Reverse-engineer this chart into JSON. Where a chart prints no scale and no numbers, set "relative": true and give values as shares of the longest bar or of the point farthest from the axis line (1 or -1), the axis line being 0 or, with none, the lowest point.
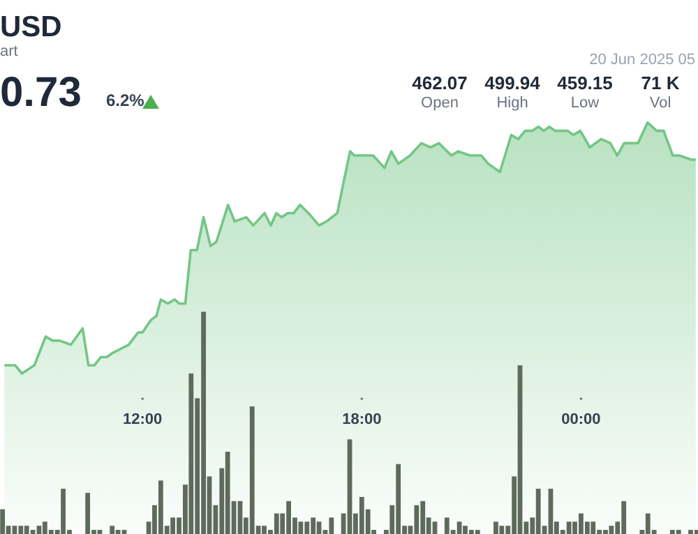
{
  "chart_data": {
    "type": "area",
    "title": "USD",
    "subtitle": "art",
    "relative": true,
    "annotations": [
      "0.73",
      "6.2%",
      "20 Jun 2025 05",
      "462.07",
      "Open",
      "499.94",
      "High",
      "459.15",
      "Low",
      "71 K",
      "Vol"
    ],
    "xlim": [
      8.1,
      27.2
    ],
    "xticks": [
      {
        "value": 12,
        "label": "12:00"
      },
      {
        "value": 18,
        "label": "18:00"
      },
      {
        "value": 24,
        "label": "00:00"
      }
    ],
    "series": [
      {
        "color": "#74c686",
        "x": [
          8.22,
          8.37,
          8.52,
          8.7,
          9.04,
          9.35,
          9.54,
          9.73,
          10.04,
          10.36,
          10.52,
          10.68,
          10.86,
          11.02,
          11.18,
          11.62,
          11.88,
          12,
          12.23,
          12.38,
          12.5,
          12.69,
          12.88,
          13.01,
          13.17,
          13.32,
          13.49,
          13.67,
          13.86,
          14.02,
          14.34,
          14.52,
          14.84,
          15.03,
          15.34,
          15.51,
          15.66,
          15.81,
          15.97,
          16.14,
          16.31,
          16.54,
          16.83,
          17.04,
          17.33,
          17.49,
          17.68,
          17.8,
          17.93,
          18.31,
          18.62,
          18.81,
          19,
          19.32,
          19.63,
          19.88,
          20.11,
          20.45,
          20.64,
          20.96,
          21.27,
          21.46,
          21.78,
          22.09,
          22.28,
          22.47,
          22.66,
          22.83,
          22.98,
          23.13,
          23.29,
          23.48,
          23.63,
          23.79,
          23.98,
          24.24,
          24.55,
          24.8,
          24.99,
          25.18,
          25.44,
          25.56,
          25.82,
          26.07,
          26.26,
          26.51,
          26.7,
          27.01,
          27.14
        ],
        "values": [
          0.41,
          0.41,
          0.41,
          0.39,
          0.41,
          0.48,
          0.47,
          0.47,
          0.46,
          0.5,
          0.41,
          0.41,
          0.43,
          0.43,
          0.44,
          0.46,
          0.49,
          0.49,
          0.52,
          0.53,
          0.57,
          0.56,
          0.57,
          0.56,
          0.56,
          0.69,
          0.69,
          0.77,
          0.7,
          0.71,
          0.8,
          0.76,
          0.77,
          0.75,
          0.78,
          0.75,
          0.78,
          0.77,
          0.78,
          0.78,
          0.8,
          0.78,
          0.75,
          0.76,
          0.78,
          0.85,
          0.93,
          0.92,
          0.92,
          0.92,
          0.89,
          0.93,
          0.9,
          0.92,
          0.95,
          0.94,
          0.95,
          0.92,
          0.93,
          0.92,
          0.92,
          0.9,
          0.88,
          0.97,
          0.96,
          0.98,
          0.98,
          0.99,
          0.98,
          0.99,
          0.98,
          0.98,
          0.98,
          0.97,
          0.98,
          0.94,
          0.96,
          0.95,
          0.92,
          0.95,
          0.95,
          0.95,
          1,
          0.98,
          0.98,
          0.92,
          0.92,
          0.91,
          0.91
        ]
      },
      {
        "type": "bar",
        "color": "#5e6a5c",
        "x": [
          8.17,
          8.33,
          8.5,
          8.67,
          8.83,
          9,
          9.17,
          9.33,
          9.5,
          9.67,
          9.83,
          10,
          10.17,
          10.33,
          10.5,
          10.67,
          10.83,
          11,
          11.17,
          11.33,
          11.5,
          11.67,
          11.83,
          12,
          12.17,
          12.33,
          12.5,
          12.67,
          12.83,
          13,
          13.17,
          13.33,
          13.5,
          13.67,
          13.83,
          14,
          14.17,
          14.33,
          14.5,
          14.67,
          14.83,
          15,
          15.17,
          15.33,
          15.5,
          15.67,
          15.83,
          16,
          16.17,
          16.33,
          16.5,
          16.67,
          16.83,
          17,
          17.17,
          17.33,
          17.5,
          17.67,
          17.83,
          18,
          18.17,
          18.33,
          18.5,
          18.67,
          18.83,
          19,
          19.17,
          19.33,
          19.5,
          19.67,
          19.83,
          20,
          20.17,
          20.33,
          20.5,
          20.67,
          20.83,
          21,
          21.17,
          21.33,
          21.5,
          21.67,
          21.83,
          22,
          22.17,
          22.33,
          22.5,
          22.67,
          22.83,
          23,
          23.17,
          23.33,
          23.5,
          23.67,
          23.83,
          24,
          24.17,
          24.33,
          24.5,
          24.67,
          24.83,
          25,
          25.17,
          25.33,
          25.5,
          25.67,
          25.83,
          26,
          26.17,
          26.33,
          26.5,
          26.67,
          26.83,
          27,
          27.17
        ],
        "values": [
          0.06,
          0.02,
          0.02,
          0.02,
          0.02,
          0.01,
          0.02,
          0.03,
          0.01,
          0.01,
          0.11,
          0.01,
          0,
          0,
          0.1,
          0.01,
          0.01,
          0,
          0.02,
          0.01,
          0.01,
          0,
          0,
          0,
          0.03,
          0.07,
          0.13,
          0.02,
          0.04,
          0.04,
          0.12,
          0.39,
          0.33,
          0.54,
          0.14,
          0.07,
          0.16,
          0.2,
          0.08,
          0.08,
          0.04,
          0.31,
          0.02,
          0.02,
          0.01,
          0.05,
          0.05,
          0.08,
          0.04,
          0.03,
          0.03,
          0.04,
          0.03,
          0.01,
          0.04,
          0,
          0.05,
          0.23,
          0.05,
          0.09,
          0.06,
          0.01,
          0,
          0.01,
          0.07,
          0.17,
          0.02,
          0.02,
          0.07,
          0.08,
          0.04,
          0.03,
          0,
          0.04,
          0.01,
          0.03,
          0.02,
          0.01,
          0.01,
          0,
          0,
          0.03,
          0.02,
          0.02,
          0.14,
          0.41,
          0.03,
          0.04,
          0.11,
          0.02,
          0.11,
          0.03,
          0.01,
          0.03,
          0.03,
          0.05,
          0.03,
          0.03,
          0.01,
          0.01,
          0.02,
          0.03,
          0.08,
          0,
          0,
          0.01,
          0.05,
          0.01,
          0,
          0,
          0.01,
          0.01,
          0,
          0.01,
          0.01
        ]
      }
    ]
  }
}
